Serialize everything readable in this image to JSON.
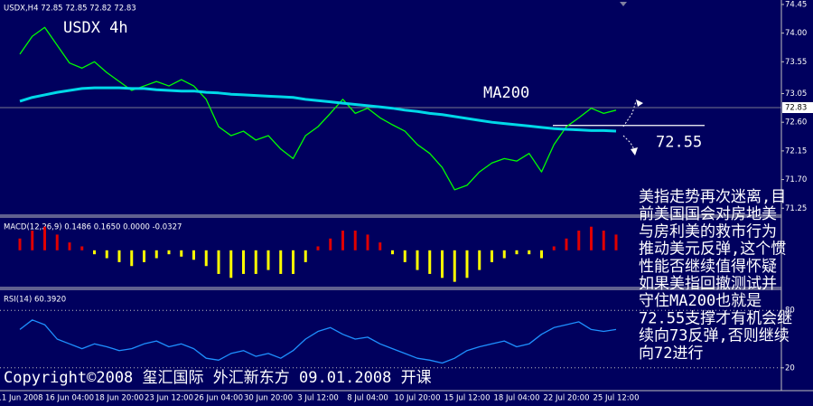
{
  "chart_data": [
    {
      "type": "line",
      "title": "USDX,H4 72.85 72.85 72.82 72.83",
      "label": "USDX 4h",
      "ylim": [
        71.14,
        74.52
      ],
      "yticks": [
        74.45,
        {
          "value": 74,
          "label": "74.00"
        },
        73.55,
        73.05,
        {
          "value": 72.6,
          "label": "72.60"
        },
        72.15,
        {
          "value": 71.7,
          "label": "71.70"
        },
        71.25
      ],
      "last_price": 72.83,
      "support": 72.55,
      "series": [
        {
          "color": "#00ff00",
          "values": [
            73.67,
            73.95,
            74.09,
            73.81,
            73.53,
            73.45,
            73.55,
            73.38,
            73.24,
            73.1,
            73.17,
            73.24,
            73.17,
            73.27,
            73.17,
            72.96,
            72.53,
            72.39,
            72.46,
            72.32,
            72.39,
            72.18,
            72.03,
            72.39,
            72.53,
            72.74,
            72.96,
            72.74,
            72.82,
            72.67,
            72.56,
            72.46,
            72.25,
            72.11,
            71.89,
            71.54,
            71.61,
            71.82,
            71.96,
            72.03,
            71.99,
            72.11,
            71.82,
            72.25,
            72.53,
            72.67,
            72.82,
            72.74,
            72.79
          ]
        },
        {
          "name": "MA200",
          "color": "#00d8e8",
          "values": [
            72.93,
            72.99,
            73.03,
            73.07,
            73.1,
            73.13,
            73.14,
            73.14,
            73.14,
            73.13,
            73.13,
            73.11,
            73.1,
            73.09,
            73.09,
            73.07,
            73.06,
            73.04,
            73.03,
            73.02,
            73.01,
            73.0,
            72.99,
            72.96,
            72.94,
            72.92,
            72.9,
            72.88,
            72.86,
            72.84,
            72.82,
            72.79,
            72.77,
            72.74,
            72.72,
            72.69,
            72.66,
            72.63,
            72.6,
            72.58,
            72.56,
            72.54,
            72.52,
            72.5,
            72.49,
            72.48,
            72.47,
            72.47,
            72.46
          ]
        }
      ],
      "annotations": [
        "美指走势再次迷离,目",
        "前美国国会对房地美",
        "与房利美的救市行为",
        "推动美元反弹,这个惯",
        "性能否继续值得怀疑",
        "如果美指回撤测试并",
        "守住MA200也就是",
        "72.55支撑才有机会继",
        "续向73反弹,否则继续",
        "向72进行"
      ],
      "copyright": "Copyright©2008 玺汇国际 外汇新东方 09.01.2008 开课"
    },
    {
      "type": "bar",
      "title": "MACD(12,26,9) 0.1486 0.1650 0.0000 -0.0327",
      "ylim": [
        -0.45,
        0.4
      ],
      "up_color": "#e00000",
      "down_color": "#ffff00",
      "values": [
        0.15,
        0.25,
        0.3,
        0.2,
        0.1,
        0.05,
        -0.05,
        -0.1,
        -0.15,
        -0.2,
        -0.15,
        -0.1,
        -0.05,
        -0.08,
        -0.12,
        -0.2,
        -0.3,
        -0.35,
        -0.3,
        -0.3,
        -0.25,
        -0.3,
        -0.3,
        -0.15,
        0.05,
        0.15,
        0.25,
        0.25,
        0.2,
        0.1,
        -0.05,
        -0.15,
        -0.25,
        -0.3,
        -0.35,
        -0.4,
        -0.35,
        -0.25,
        -0.15,
        -0.1,
        -0.05,
        -0.05,
        -0.1,
        0.05,
        0.15,
        0.25,
        0.3,
        0.25,
        0.2
      ]
    },
    {
      "type": "line",
      "title": "RSI(14) 60.3920",
      "ylim": [
        0,
        100
      ],
      "yticks": [
        20,
        80
      ],
      "grid": true,
      "categories": [
        "11 Jun 2008",
        null,
        null,
        null,
        "16 Jun 04:00",
        null,
        null,
        null,
        "18 Jun 20:00",
        null,
        null,
        null,
        "23 Jun 12:00",
        null,
        null,
        null,
        "26 Jun 04:00",
        null,
        null,
        null,
        "30 Jun 20:00",
        null,
        null,
        null,
        "3 Jul 12:00",
        null,
        null,
        null,
        "8 Jul 04:00",
        null,
        null,
        null,
        "10 Jul 20:00",
        null,
        null,
        null,
        "15 Jul 12:00",
        null,
        null,
        null,
        "18 Jul 04:00",
        null,
        null,
        null,
        "22 Jul 20:00",
        null,
        null,
        null,
        "25 Jul 12:00"
      ],
      "series": [
        {
          "color": "#1e90ff",
          "values": [
            60,
            70,
            65,
            50,
            45,
            40,
            45,
            42,
            38,
            40,
            45,
            48,
            42,
            45,
            40,
            30,
            28,
            35,
            38,
            32,
            35,
            30,
            38,
            50,
            58,
            62,
            55,
            50,
            52,
            45,
            40,
            35,
            30,
            28,
            25,
            30,
            38,
            42,
            45,
            48,
            42,
            45,
            55,
            62,
            65,
            68,
            60,
            58,
            60
          ]
        }
      ]
    }
  ]
}
